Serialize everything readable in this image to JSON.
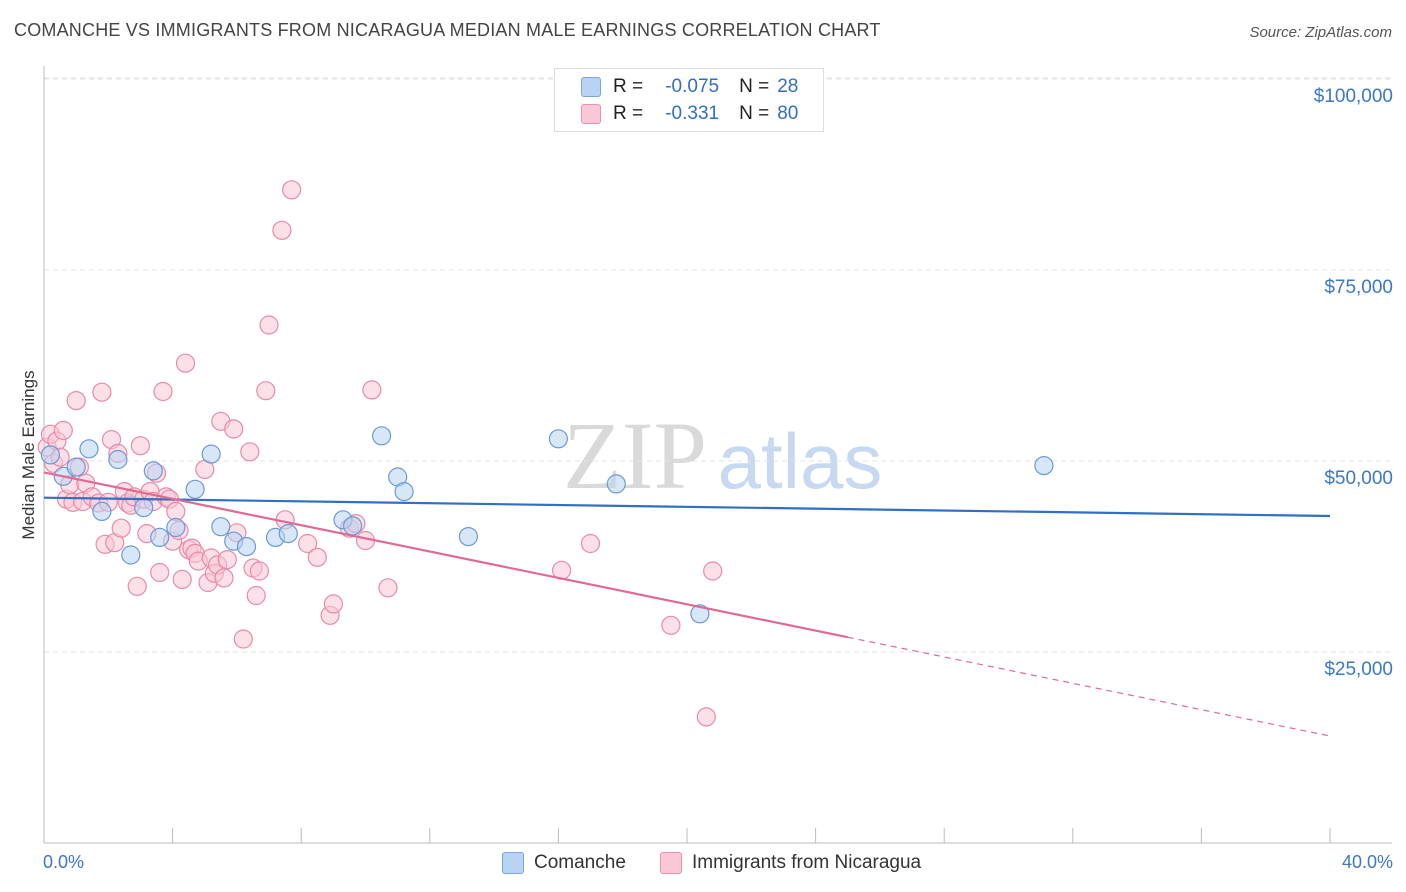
{
  "header": {
    "title": "COMANCHE VS IMMIGRANTS FROM NICARAGUA MEDIAN MALE EARNINGS CORRELATION CHART",
    "source": "Source: ZipAtlas.com"
  },
  "watermark": {
    "zip": "ZIP",
    "atlas": "atlas"
  },
  "stats": {
    "rows": [
      {
        "r_label": "R =",
        "r_value": "-0.075",
        "n_label": "N =",
        "n_value": "28"
      },
      {
        "r_label": "R =",
        "r_value": "-0.331",
        "n_label": "N =",
        "n_value": "80"
      }
    ]
  },
  "legend": {
    "items": [
      {
        "label": "Comanche"
      },
      {
        "label": "Immigrants from Nicaragua"
      }
    ]
  },
  "colors": {
    "blue_fill": "#b8d3f3",
    "blue_stroke": "#6a9ad6",
    "blue_line": "#2f6fc4",
    "pink_fill": "#f9c7d6",
    "pink_stroke": "#e98aa8",
    "pink_line": "#e06a92",
    "grid": "#e3e3e3",
    "axis_text": "#3b78c8"
  },
  "chart_data": {
    "type": "scatter",
    "title": "COMANCHE VS IMMIGRANTS FROM NICARAGUA MEDIAN MALE EARNINGS CORRELATION CHART",
    "xlabel": "",
    "ylabel": "Median Male Earnings",
    "xlim": [
      0,
      40
    ],
    "ylim": [
      0,
      105000
    ],
    "x_tick_labels": [
      "0.0%",
      "40.0%"
    ],
    "y_ticks": [
      25000,
      50000,
      75000,
      100000
    ],
    "y_tick_labels": [
      "$25,000",
      "$50,000",
      "$75,000",
      "$100,000"
    ],
    "grid": true,
    "series": [
      {
        "name": "Comanche",
        "color": "blue",
        "r": -0.075,
        "n": 28,
        "trend": {
          "x": [
            0,
            40
          ],
          "y": [
            45200,
            42800
          ],
          "dashed_from": null
        },
        "points": [
          [
            0.2,
            50800
          ],
          [
            0.6,
            48000
          ],
          [
            1.0,
            49200
          ],
          [
            1.4,
            51600
          ],
          [
            1.8,
            43400
          ],
          [
            2.3,
            50200
          ],
          [
            2.7,
            37700
          ],
          [
            3.1,
            43900
          ],
          [
            3.4,
            48700
          ],
          [
            3.6,
            40000
          ],
          [
            4.1,
            41300
          ],
          [
            4.7,
            46300
          ],
          [
            5.2,
            50900
          ],
          [
            5.5,
            41400
          ],
          [
            5.9,
            39500
          ],
          [
            6.3,
            38800
          ],
          [
            7.2,
            40000
          ],
          [
            7.6,
            40500
          ],
          [
            9.3,
            42300
          ],
          [
            9.6,
            41500
          ],
          [
            10.5,
            53300
          ],
          [
            11.0,
            47900
          ],
          [
            11.2,
            46000
          ],
          [
            13.2,
            40100
          ],
          [
            16.0,
            52900
          ],
          [
            17.8,
            47000
          ],
          [
            20.4,
            30000
          ],
          [
            31.1,
            49400
          ]
        ]
      },
      {
        "name": "Immigrants from Nicaragua",
        "color": "pink",
        "r": -0.331,
        "n": 80,
        "trend": {
          "x": [
            0,
            40
          ],
          "y": [
            48500,
            14000
          ],
          "dashed_from": 25
        },
        "points": [
          [
            0.1,
            51800
          ],
          [
            0.2,
            53500
          ],
          [
            0.3,
            49700
          ],
          [
            0.4,
            52600
          ],
          [
            0.5,
            50500
          ],
          [
            0.6,
            54000
          ],
          [
            0.7,
            45000
          ],
          [
            0.8,
            46900
          ],
          [
            0.9,
            44600
          ],
          [
            1.0,
            57900
          ],
          [
            1.1,
            49200
          ],
          [
            1.2,
            44700
          ],
          [
            1.3,
            47100
          ],
          [
            1.5,
            45300
          ],
          [
            1.7,
            44500
          ],
          [
            1.8,
            59000
          ],
          [
            1.9,
            39100
          ],
          [
            2.0,
            44600
          ],
          [
            2.1,
            52800
          ],
          [
            2.2,
            39300
          ],
          [
            2.3,
            51000
          ],
          [
            2.4,
            41200
          ],
          [
            2.5,
            46000
          ],
          [
            2.6,
            44500
          ],
          [
            2.7,
            44200
          ],
          [
            2.8,
            45300
          ],
          [
            2.9,
            33600
          ],
          [
            3.0,
            52000
          ],
          [
            3.1,
            45000
          ],
          [
            3.2,
            40500
          ],
          [
            3.3,
            46000
          ],
          [
            3.4,
            44700
          ],
          [
            3.5,
            48400
          ],
          [
            3.6,
            35400
          ],
          [
            3.7,
            59100
          ],
          [
            3.8,
            45300
          ],
          [
            3.9,
            45000
          ],
          [
            4.0,
            39500
          ],
          [
            4.1,
            43400
          ],
          [
            4.2,
            40900
          ],
          [
            4.3,
            34500
          ],
          [
            4.4,
            62800
          ],
          [
            4.5,
            38400
          ],
          [
            4.6,
            38600
          ],
          [
            4.7,
            37900
          ],
          [
            4.8,
            36900
          ],
          [
            5.0,
            48900
          ],
          [
            5.1,
            34100
          ],
          [
            5.2,
            37300
          ],
          [
            5.3,
            35300
          ],
          [
            5.4,
            36400
          ],
          [
            5.5,
            55200
          ],
          [
            5.6,
            34700
          ],
          [
            5.7,
            37100
          ],
          [
            5.9,
            54200
          ],
          [
            6.0,
            40600
          ],
          [
            6.2,
            26700
          ],
          [
            6.4,
            51200
          ],
          [
            6.5,
            36000
          ],
          [
            6.6,
            32400
          ],
          [
            6.7,
            35600
          ],
          [
            6.9,
            59200
          ],
          [
            7.0,
            67800
          ],
          [
            7.4,
            80200
          ],
          [
            7.5,
            42300
          ],
          [
            7.7,
            85500
          ],
          [
            8.2,
            39200
          ],
          [
            8.5,
            37400
          ],
          [
            8.9,
            29800
          ],
          [
            9.0,
            31300
          ],
          [
            9.5,
            41200
          ],
          [
            9.7,
            41800
          ],
          [
            10.0,
            39600
          ],
          [
            10.2,
            59300
          ],
          [
            10.7,
            33400
          ],
          [
            16.1,
            35700
          ],
          [
            17.0,
            39200
          ],
          [
            19.5,
            28500
          ],
          [
            20.6,
            16500
          ],
          [
            20.8,
            35600
          ]
        ]
      }
    ]
  }
}
